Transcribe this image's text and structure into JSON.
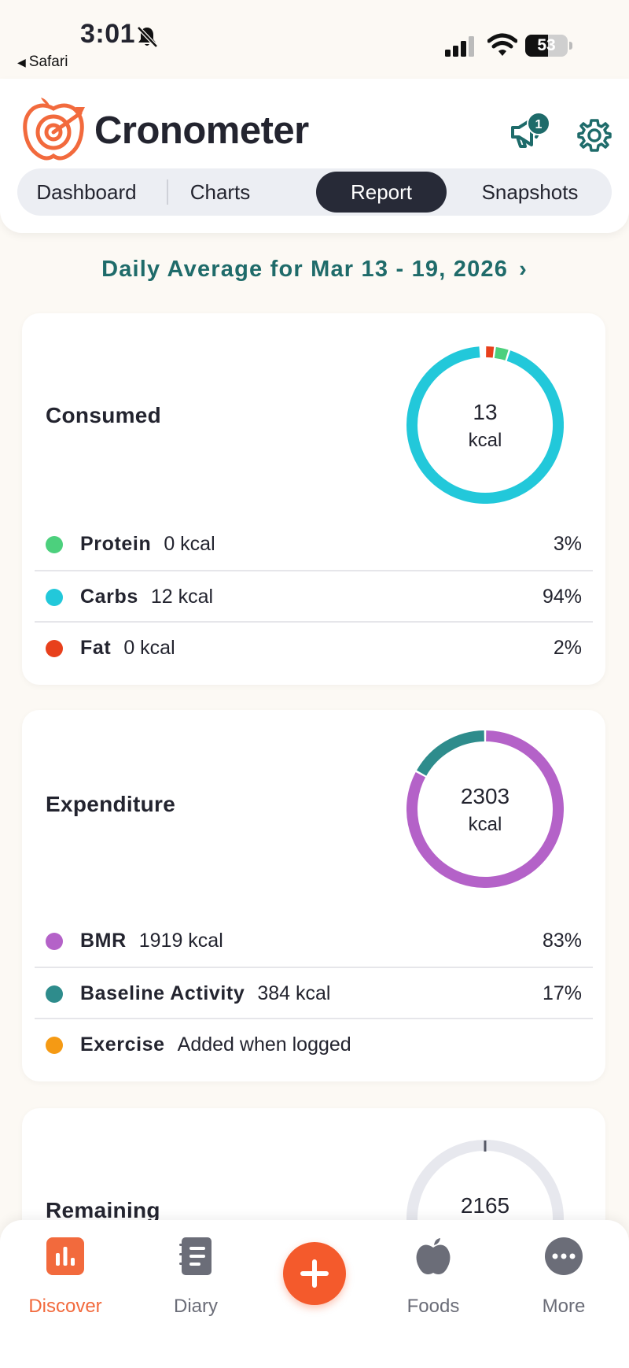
{
  "status_bar": {
    "time": "3:01",
    "back_app": "Safari",
    "battery": "53",
    "battery_level": 0.53
  },
  "header": {
    "brand": "Cronometer",
    "announcement_badge": "1",
    "tabs": [
      {
        "label": "Dashboard",
        "active": false
      },
      {
        "label": "Charts",
        "active": false
      },
      {
        "label": "Report",
        "active": true
      },
      {
        "label": "Snapshots",
        "active": false
      }
    ]
  },
  "date_heading": "Daily Average for Mar 13 - 19, 2026",
  "consumed": {
    "title": "Consumed",
    "total": "13",
    "unit": "kcal",
    "items": [
      {
        "name": "Protein",
        "amount": "0 kcal",
        "percent": "3%",
        "color": "#4cd07d",
        "share": 0.03
      },
      {
        "name": "Carbs",
        "amount": "12 kcal",
        "percent": "94%",
        "color": "#22c8da",
        "share": 0.94
      },
      {
        "name": "Fat",
        "amount": "0 kcal",
        "percent": "2%",
        "color": "#e8401c",
        "share": 0.02
      }
    ]
  },
  "expenditure": {
    "title": "Expenditure",
    "total": "2303",
    "unit": "kcal",
    "items": [
      {
        "name": "BMR",
        "amount": "1919 kcal",
        "percent": "83%",
        "color": "#b462c8",
        "share": 0.83
      },
      {
        "name": "Baseline Activity",
        "amount": "384 kcal",
        "percent": "17%",
        "color": "#2e8c8c",
        "share": 0.17
      },
      {
        "name": "Exercise",
        "amount": "Added when logged",
        "percent": "",
        "color": "#f59a14",
        "share": 0
      }
    ]
  },
  "remaining": {
    "title": "Remaining",
    "total": "2165"
  },
  "bottom_nav": {
    "items": [
      {
        "label": "Discover",
        "icon": "bar-chart-icon",
        "active": true
      },
      {
        "label": "Diary",
        "icon": "notebook-icon",
        "active": false
      },
      {
        "label": "Foods",
        "icon": "apple-icon",
        "active": false
      },
      {
        "label": "More",
        "icon": "more-dots-icon",
        "active": false
      }
    ],
    "add_icon": "plus-icon"
  },
  "colors": {
    "accent": "#f45a2c",
    "teal": "#1f6b6a",
    "dark_tab": "#272a37",
    "background": "#fcf9f4"
  }
}
